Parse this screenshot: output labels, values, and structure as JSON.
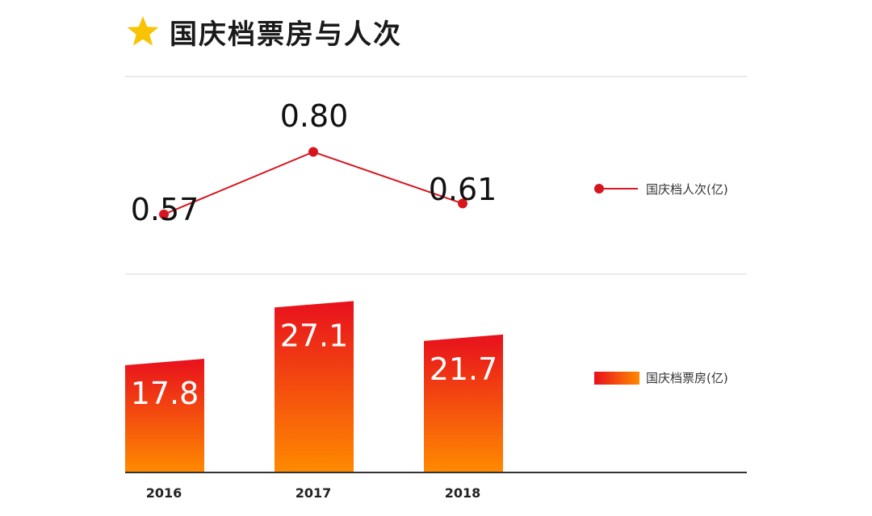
{
  "title": "国庆档票房与人次",
  "colors": {
    "line": "#d7151f",
    "bar_top": "#e8101d",
    "bar_bottom": "#ff8a00",
    "star": "#f8c300"
  },
  "chart_data": {
    "type": "bar",
    "categories": [
      "2016",
      "2017",
      "2018"
    ],
    "series": [
      {
        "name": "国庆档票房(亿)",
        "type": "bar",
        "values": [
          17.8,
          27.1,
          21.7
        ],
        "labels": [
          "17.8",
          "27.1",
          "21.7"
        ]
      },
      {
        "name": "国庆档人次(亿)",
        "type": "line",
        "values": [
          0.57,
          0.8,
          0.61
        ],
        "labels": [
          "0.57",
          "0.80",
          "0.61"
        ]
      }
    ],
    "legend_position": "right",
    "grid": true
  }
}
